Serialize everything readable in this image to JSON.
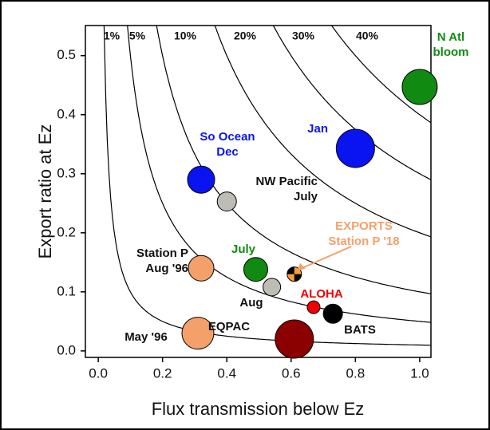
{
  "chart_data": {
    "type": "scatter",
    "x_label": "Flux transmission below Ez",
    "y_label": "Export ratio at Ez",
    "xlim": [
      -0.04,
      1.035
    ],
    "ylim": [
      -0.011,
      0.551
    ],
    "xticks": [
      {
        "value": 0,
        "label": "0.0"
      },
      0.2,
      0.4,
      0.6,
      0.8,
      {
        "value": 1,
        "label": "1.0"
      }
    ],
    "yticks": [
      {
        "value": 0,
        "label": "0.0"
      },
      0.1,
      0.2,
      0.3,
      0.4,
      0.5
    ],
    "contours": [
      {
        "value": 0.01,
        "label": "1%"
      },
      {
        "value": 0.05,
        "label": "5%"
      },
      {
        "value": 0.1,
        "label": "10%"
      },
      {
        "value": 0.2,
        "label": "20%"
      },
      {
        "value": 0.3,
        "label": "30%"
      },
      {
        "value": 0.4,
        "label": "40%"
      }
    ],
    "points": [
      {
        "label": [
          "So Ocean",
          "Dec"
        ],
        "x": 0.32,
        "y": 0.29,
        "size": 17,
        "color": "#0a14f0",
        "label_color": "#0a14f0"
      },
      {
        "label": [
          "Jan"
        ],
        "x": 0.8,
        "y": 0.343,
        "size": 24,
        "color": "#0a14f0",
        "label_color": "#0a14f0"
      },
      {
        "label": [
          "N Atl",
          "bloom"
        ],
        "x": 1.0,
        "y": 0.447,
        "size": 22,
        "color": "#118a11",
        "label_color": "#118a11"
      },
      {
        "label": [
          "NW Pacific",
          "July"
        ],
        "x": 0.4,
        "y": 0.253,
        "size": 12,
        "color": "#bdbdb5",
        "label_color": "#111111"
      },
      {
        "label": [
          "Station P",
          "Aug '96"
        ],
        "x": 0.32,
        "y": 0.14,
        "size": 16,
        "color": "#f4a06a",
        "label_color": "#111111"
      },
      {
        "label": [
          "July"
        ],
        "x": 0.49,
        "y": 0.138,
        "size": 15,
        "color": "#118a11",
        "label_color": "#118a11"
      },
      {
        "label": [
          "Aug"
        ],
        "x": 0.54,
        "y": 0.108,
        "size": 11,
        "color": "#bdbdb5",
        "label_color": "#111111"
      },
      {
        "label": [
          "EXPORTS",
          "Station P '18"
        ],
        "x": 0.61,
        "y": 0.13,
        "size": 9,
        "color": "#f4a040",
        "label_color": "#f4a06a"
      },
      {
        "label": [
          "ALOHA"
        ],
        "x": 0.67,
        "y": 0.074,
        "size": 8,
        "color": "#f00000",
        "label_color": "#f00000"
      },
      {
        "label": [
          "BATS"
        ],
        "x": 0.73,
        "y": 0.063,
        "size": 12,
        "color": "#000000",
        "label_color": "#111111"
      },
      {
        "label": [
          "May '96"
        ],
        "x": 0.31,
        "y": 0.03,
        "size": 20,
        "color": "#f4a06a",
        "label_color": "#111111"
      },
      {
        "label": [
          "EQPAC"
        ],
        "x": 0.61,
        "y": 0.02,
        "size": 24,
        "color": "#8b0000",
        "label_color": "#111111"
      }
    ]
  }
}
